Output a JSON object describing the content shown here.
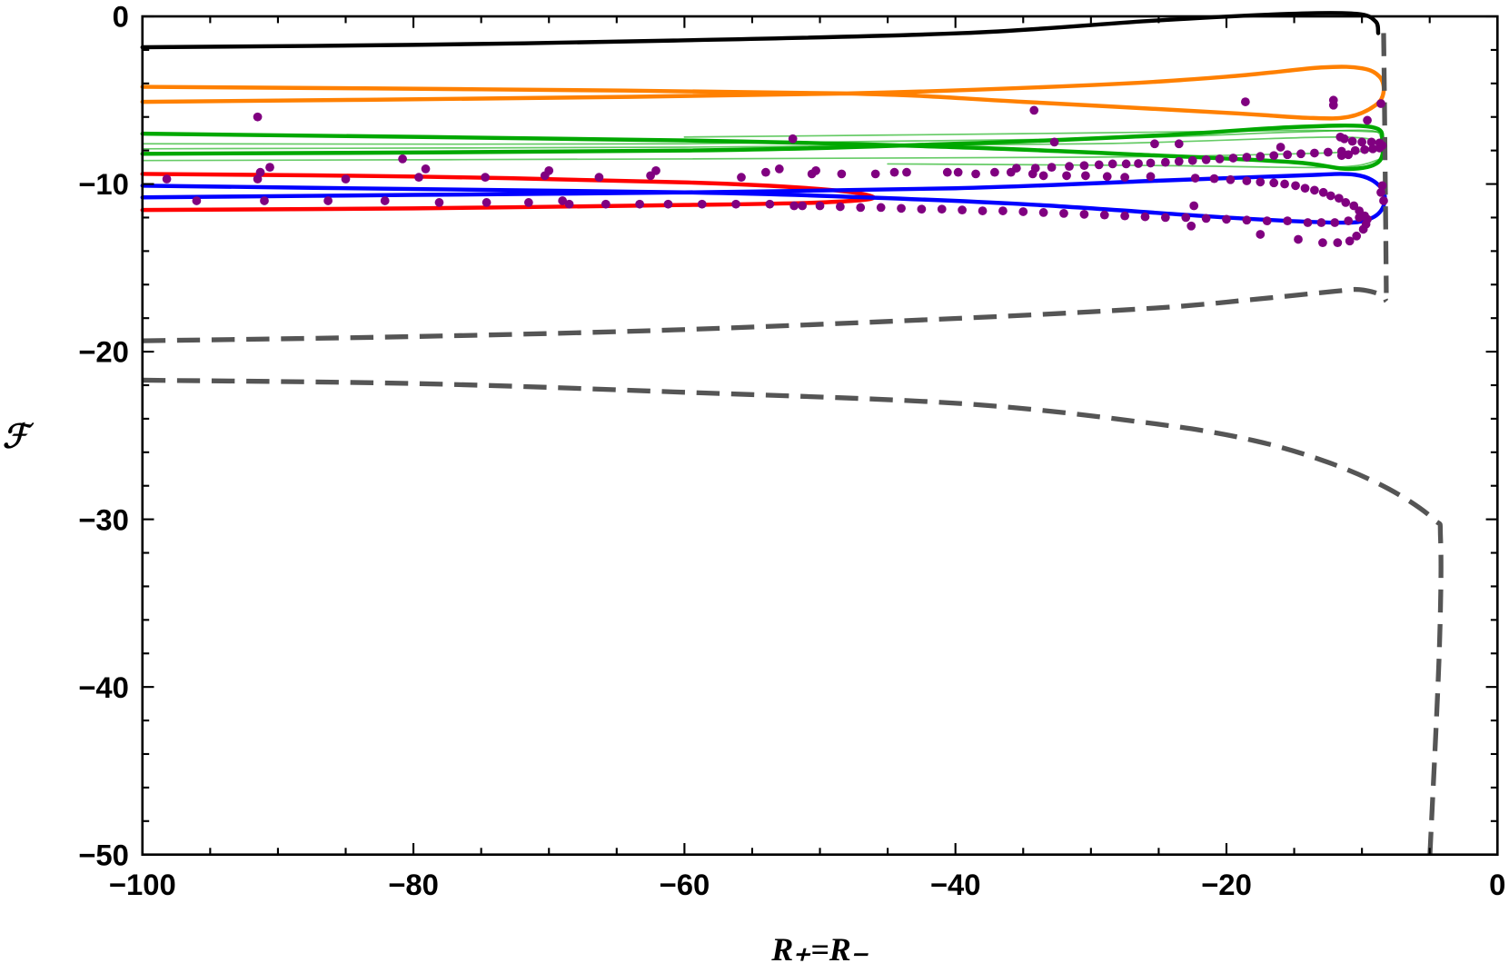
{
  "chart_data": {
    "type": "line",
    "title": "",
    "xlabel": "R₊=R₋",
    "ylabel": "ℱ",
    "xlim": [
      -100,
      0
    ],
    "ylim": [
      -50,
      0
    ],
    "xticks": [
      -100,
      -80,
      -60,
      -40,
      -20,
      0
    ],
    "xtick_labels": [
      "−100",
      "−80",
      "−60",
      "−40",
      "−20",
      "0"
    ],
    "yticks": [
      0,
      -10,
      -20,
      -30,
      -40,
      -50
    ],
    "ytick_labels": [
      "0",
      "−10",
      "−20",
      "−30",
      "−40",
      "−50"
    ],
    "x_minor_step": 5,
    "y_minor_step": 2,
    "grid": false,
    "legend": "none",
    "series": [
      {
        "color": "#000000",
        "style": "solid",
        "width": "thick",
        "points": [
          [
            -100,
            -1.84
          ],
          [
            -80,
            -1.7
          ],
          [
            -60.8,
            -1.44
          ],
          [
            -39.5,
            -1.0
          ],
          [
            -25.3,
            -0.25
          ],
          [
            -15.3,
            0.15
          ],
          [
            -10.4,
            0.15
          ],
          [
            -9.0,
            -0.3
          ],
          [
            -8.8,
            -1.0
          ]
        ]
      },
      {
        "color": "#ff8000",
        "style": "solid",
        "width": "thick",
        "points": [
          [
            -100,
            -5.1
          ],
          [
            -75,
            -4.9
          ],
          [
            -48,
            -4.6
          ],
          [
            -30,
            -4.1
          ],
          [
            -20,
            -3.6
          ],
          [
            -13,
            -3.05
          ],
          [
            -10,
            -3.1
          ],
          [
            -8.7,
            -3.6
          ],
          [
            -8.4,
            -4.5
          ],
          [
            -9.0,
            -5.3
          ],
          [
            -11,
            -6.0
          ],
          [
            -14,
            -6.05
          ],
          [
            -20,
            -5.75
          ],
          [
            -35,
            -5.1
          ],
          [
            -48,
            -4.6
          ],
          [
            -75,
            -4.35
          ],
          [
            -100,
            -4.2
          ]
        ]
      },
      {
        "color": "#00a800",
        "style": "solid",
        "width": "thick",
        "points": [
          [
            -100,
            -7.0
          ],
          [
            -60,
            -7.4
          ],
          [
            -40,
            -7.8
          ],
          [
            -25,
            -8.3
          ],
          [
            -15,
            -8.7
          ],
          [
            -11,
            -9.1
          ],
          [
            -8.8,
            -8.7
          ],
          [
            -8.5,
            -7.5
          ],
          [
            -9.3,
            -6.6
          ],
          [
            -15,
            -6.6
          ],
          [
            -25,
            -7.1
          ],
          [
            -40,
            -7.6
          ],
          [
            -60,
            -8.0
          ],
          [
            -100,
            -8.2
          ]
        ]
      },
      {
        "color": "#00a800",
        "style": "solid",
        "width": "thin",
        "points": [
          [
            -100,
            -7.6
          ],
          [
            -60,
            -7.6
          ],
          [
            -30,
            -7.3
          ],
          [
            -15,
            -6.9
          ],
          [
            -9.5,
            -6.8
          ],
          [
            -8.6,
            -7.2
          ]
        ]
      },
      {
        "color": "#00a800",
        "style": "solid",
        "width": "thin",
        "points": [
          [
            -100,
            -7.9
          ],
          [
            -60,
            -7.8
          ],
          [
            -30,
            -7.6
          ],
          [
            -12,
            -7.2
          ],
          [
            -8.6,
            -7.6
          ]
        ]
      },
      {
        "color": "#00a800",
        "style": "solid",
        "width": "thin",
        "points": [
          [
            -100,
            -8.6
          ],
          [
            -60,
            -8.5
          ],
          [
            -30,
            -8.4
          ],
          [
            -15,
            -8.2
          ],
          [
            -8.6,
            -8.0
          ]
        ]
      },
      {
        "color": "#00a800",
        "style": "solid",
        "width": "thin",
        "points": [
          [
            -60,
            -7.2
          ],
          [
            -35,
            -7.0
          ],
          [
            -15,
            -6.8
          ],
          [
            -8.6,
            -6.9
          ]
        ]
      },
      {
        "color": "#00a800",
        "style": "solid",
        "width": "thin",
        "points": [
          [
            -45,
            -8.8
          ],
          [
            -25,
            -8.9
          ],
          [
            -12,
            -9.0
          ],
          [
            -8.6,
            -8.5
          ]
        ]
      },
      {
        "color": "#ff0000",
        "style": "solid",
        "width": "thick",
        "points": [
          [
            -100,
            -9.4
          ],
          [
            -80,
            -9.55
          ],
          [
            -60,
            -9.9
          ],
          [
            -50,
            -10.3
          ],
          [
            -46,
            -10.8
          ],
          [
            -50,
            -11.1
          ],
          [
            -60,
            -11.25
          ],
          [
            -80,
            -11.45
          ],
          [
            -100,
            -11.55
          ]
        ]
      },
      {
        "color": "#0000ff",
        "style": "solid",
        "width": "thick",
        "points": [
          [
            -100,
            -10.8
          ],
          [
            -80,
            -10.65
          ],
          [
            -60,
            -10.5
          ],
          [
            -40,
            -10.25
          ],
          [
            -25,
            -9.8
          ],
          [
            -15,
            -9.5
          ],
          [
            -10.5,
            -9.45
          ],
          [
            -8.6,
            -10.2
          ],
          [
            -8.4,
            -11.3
          ],
          [
            -9.5,
            -12.1
          ],
          [
            -12,
            -12.3
          ],
          [
            -20,
            -12.0
          ],
          [
            -35,
            -11.2
          ],
          [
            -50,
            -10.7
          ],
          [
            -60,
            -10.5
          ],
          [
            -80,
            -10.3
          ],
          [
            -100,
            -10.1
          ]
        ]
      },
      {
        "color": "#555555",
        "style": "dashed",
        "width": "thick",
        "points": [
          [
            -8.4,
            -1.0
          ],
          [
            -8.3,
            -8.0
          ],
          [
            -8.2,
            -16.5
          ]
        ]
      },
      {
        "color": "#555555",
        "style": "dashed",
        "width": "thick",
        "points": [
          [
            -100,
            -19.35
          ],
          [
            -80,
            -19.1
          ],
          [
            -60.8,
            -18.7
          ],
          [
            -39.5,
            -18.0
          ],
          [
            -25.3,
            -17.4
          ],
          [
            -18.2,
            -16.9
          ],
          [
            -12,
            -16.4
          ],
          [
            -10.2,
            -16.3
          ],
          [
            -8.6,
            -16.6
          ],
          [
            -8.2,
            -17.0
          ]
        ]
      },
      {
        "color": "#555555",
        "style": "dashed",
        "width": "thick",
        "points": [
          [
            -100,
            -21.7
          ],
          [
            -80,
            -21.9
          ],
          [
            -60.8,
            -22.4
          ],
          [
            -39.5,
            -23.1
          ],
          [
            -25.3,
            -24.3
          ],
          [
            -18,
            -25.3
          ],
          [
            -12.5,
            -26.6
          ],
          [
            -8,
            -28.2
          ],
          [
            -4.7,
            -30.0
          ],
          [
            -4.2,
            -31.2
          ],
          [
            -4.3,
            -38
          ],
          [
            -5.0,
            -50.3
          ]
        ]
      }
    ],
    "scatter": {
      "color": "#800080",
      "points": [
        [
          -98.2,
          -9.7
        ],
        [
          -91.5,
          -9.7
        ],
        [
          -91.3,
          -9.3
        ],
        [
          -90.6,
          -9.0
        ],
        [
          -85,
          -9.7
        ],
        [
          -80.8,
          -8.5
        ],
        [
          -79.6,
          -9.6
        ],
        [
          -79.1,
          -9.1
        ],
        [
          -74.7,
          -9.6
        ],
        [
          -70.3,
          -9.5
        ],
        [
          -70.0,
          -9.2
        ],
        [
          -66.3,
          -9.6
        ],
        [
          -62.5,
          -9.5
        ],
        [
          -62.1,
          -9.2
        ],
        [
          -55.8,
          -9.6
        ],
        [
          -54.0,
          -9.3
        ],
        [
          -53.0,
          -9.1
        ],
        [
          -50.6,
          -9.4
        ],
        [
          -50.3,
          -9.2
        ],
        [
          -48.4,
          -9.4
        ],
        [
          -45.9,
          -9.4
        ],
        [
          -44.5,
          -9.3
        ],
        [
          -43.6,
          -9.3
        ],
        [
          -40.6,
          -9.3
        ],
        [
          -39.8,
          -9.3
        ],
        [
          -38.5,
          -9.4
        ],
        [
          -37.1,
          -9.3
        ],
        [
          -35.9,
          -9.3
        ],
        [
          -34.3,
          -9.4
        ],
        [
          -33.5,
          -9.5
        ],
        [
          -31.8,
          -9.5
        ],
        [
          -30.4,
          -9.5
        ],
        [
          -28.8,
          -9.55
        ],
        [
          -27.5,
          -9.6
        ],
        [
          -25.6,
          -9.55
        ],
        [
          -22.3,
          -9.65
        ],
        [
          -20.9,
          -9.68
        ],
        [
          -19.7,
          -9.74
        ],
        [
          -18.5,
          -9.81
        ],
        [
          -17.5,
          -9.88
        ],
        [
          -16.5,
          -9.93
        ],
        [
          -15.7,
          -10.0
        ],
        [
          -14.9,
          -10.1
        ],
        [
          -14.2,
          -10.25
        ],
        [
          -13.5,
          -10.37
        ],
        [
          -12.85,
          -10.5
        ],
        [
          -12.3,
          -10.7
        ],
        [
          -11.7,
          -10.85
        ],
        [
          -11.2,
          -11.1
        ],
        [
          -10.6,
          -11.3
        ],
        [
          -10.2,
          -11.6
        ],
        [
          -9.8,
          -11.9
        ],
        [
          -9.6,
          -12.1
        ],
        [
          -8.5,
          -10.1
        ],
        [
          -8.4,
          -11.0
        ],
        [
          -8.6,
          -10.5
        ],
        [
          -35.5,
          -9.05
        ],
        [
          -34.1,
          -9.05
        ],
        [
          -32.9,
          -9.0
        ],
        [
          -31.6,
          -8.95
        ],
        [
          -30.5,
          -8.9
        ],
        [
          -29.4,
          -8.85
        ],
        [
          -28.4,
          -8.8
        ],
        [
          -27.4,
          -8.8
        ],
        [
          -26.5,
          -8.78
        ],
        [
          -25.6,
          -8.75
        ],
        [
          -24.5,
          -8.7
        ],
        [
          -23.5,
          -8.65
        ],
        [
          -22.5,
          -8.6
        ],
        [
          -21.5,
          -8.55
        ],
        [
          -20.5,
          -8.5
        ],
        [
          -19.5,
          -8.45
        ],
        [
          -18.5,
          -8.4
        ],
        [
          -17.5,
          -8.35
        ],
        [
          -16.5,
          -8.3
        ],
        [
          -15.5,
          -8.25
        ],
        [
          -14.5,
          -8.2
        ],
        [
          -13.5,
          -8.15
        ],
        [
          -12.5,
          -8.1
        ],
        [
          -11.5,
          -8.05
        ],
        [
          -10.5,
          -8.0
        ],
        [
          -9.8,
          -7.95
        ],
        [
          -9.2,
          -7.9
        ],
        [
          -8.7,
          -7.85
        ],
        [
          -8.5,
          -7.7
        ],
        [
          -8.7,
          -7.55
        ],
        [
          -9.3,
          -7.5
        ],
        [
          -10.0,
          -7.5
        ],
        [
          -10.7,
          -7.45
        ],
        [
          -11.3,
          -7.3
        ],
        [
          -11.6,
          -7.2
        ],
        [
          -11.5,
          -8.3
        ],
        [
          -11.0,
          -8.25
        ],
        [
          -16.0,
          -7.8
        ],
        [
          -91.5,
          -6.0
        ],
        [
          -52.0,
          -7.3
        ],
        [
          -34.2,
          -5.6
        ],
        [
          -32.7,
          -7.5
        ],
        [
          -25.3,
          -7.6
        ],
        [
          -23.5,
          -7.6
        ],
        [
          -18.6,
          -5.1
        ],
        [
          -12.1,
          -5.0
        ],
        [
          -12.1,
          -5.3
        ],
        [
          -8.6,
          -5.2
        ],
        [
          -9.6,
          -6.2
        ],
        [
          -96.0,
          -11.0
        ],
        [
          -91.0,
          -11.0
        ],
        [
          -86.3,
          -11.0
        ],
        [
          -82.1,
          -11.0
        ],
        [
          -78.1,
          -11.1
        ],
        [
          -74.6,
          -11.1
        ],
        [
          -71.5,
          -11.1
        ],
        [
          -69.0,
          -11.0
        ],
        [
          -68.5,
          -11.2
        ],
        [
          -65.8,
          -11.2
        ],
        [
          -63.3,
          -11.2
        ],
        [
          -61.2,
          -11.2
        ],
        [
          -58.7,
          -11.2
        ],
        [
          -56.2,
          -11.2
        ],
        [
          -53.7,
          -11.2
        ],
        [
          -51.9,
          -11.3
        ],
        [
          -51.3,
          -11.3
        ],
        [
          -50,
          -11.3
        ],
        [
          -48.5,
          -11.35
        ],
        [
          -47,
          -11.4
        ],
        [
          -45.5,
          -11.4
        ],
        [
          -44,
          -11.45
        ],
        [
          -42.5,
          -11.5
        ],
        [
          -41,
          -11.5
        ],
        [
          -39.5,
          -11.55
        ],
        [
          -38,
          -11.6
        ],
        [
          -36.5,
          -11.6
        ],
        [
          -35,
          -11.65
        ],
        [
          -33.5,
          -11.7
        ],
        [
          -32,
          -11.75
        ],
        [
          -30.5,
          -11.8
        ],
        [
          -29,
          -11.85
        ],
        [
          -27.5,
          -11.9
        ],
        [
          -26,
          -11.95
        ],
        [
          -24.5,
          -12.0
        ],
        [
          -23,
          -12.0
        ],
        [
          -21.5,
          -12.05
        ],
        [
          -20,
          -12.1
        ],
        [
          -18.5,
          -12.15
        ],
        [
          -17,
          -12.2
        ],
        [
          -15.5,
          -12.2
        ],
        [
          -14,
          -12.3
        ],
        [
          -13,
          -12.3
        ],
        [
          -12,
          -12.3
        ],
        [
          -11,
          -12.2
        ],
        [
          -10.2,
          -12.0
        ],
        [
          -22.6,
          -12.5
        ],
        [
          -22.4,
          -11.3
        ],
        [
          -17.5,
          -13.0
        ],
        [
          -14.7,
          -13.3
        ],
        [
          -12.9,
          -13.5
        ],
        [
          -11.8,
          -13.5
        ],
        [
          -10.9,
          -13.4
        ],
        [
          -10.4,
          -13.1
        ],
        [
          -9.9,
          -12.7
        ],
        [
          -9.7,
          -12.4
        ]
      ]
    }
  }
}
